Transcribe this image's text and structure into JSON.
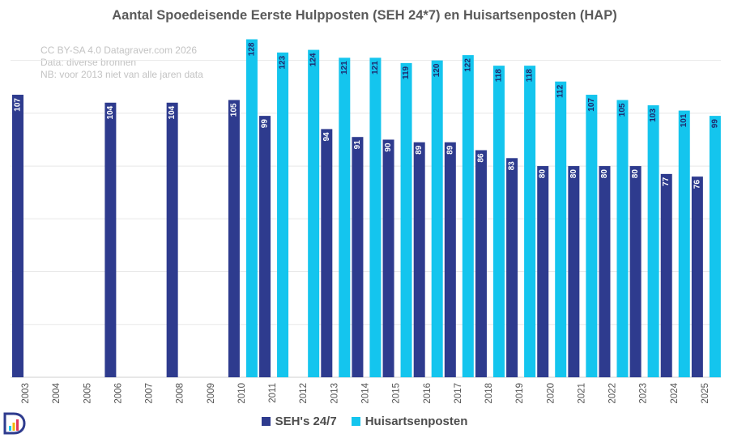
{
  "source_lines": [
    "CC BY-SA 4.0 Datagraver.com 2026",
    "Data: diverse bronnen",
    "NB: voor 2013 niet van alle jaren data"
  ],
  "colors": {
    "seh": "#2e3b8e",
    "hap": "#14c5ee",
    "grid": "#e8e8e8",
    "title": "#5a5a5a"
  },
  "logo_icon": "datagraver-logo-icon",
  "chart_data": {
    "type": "bar",
    "title": "Aantal Spoedeisende Eerste Hulpposten (SEH 24*7) en Huisartsenposten (HAP)",
    "xlabel": "",
    "ylabel": "",
    "ylim": [
      0,
      130
    ],
    "grid": true,
    "legend": "bottom-center",
    "categories": [
      "2003",
      "2004",
      "2005",
      "2006",
      "2007",
      "2008",
      "2009",
      "2010",
      "2011",
      "2012",
      "2013",
      "2014",
      "2015",
      "2016",
      "2017",
      "2018",
      "2019",
      "2020",
      "2021",
      "2022",
      "2023",
      "2024",
      "2025"
    ],
    "series": [
      {
        "name": "SEH's 24/7",
        "values": [
          107,
          null,
          null,
          104,
          null,
          104,
          null,
          105,
          99,
          null,
          94,
          91,
          90,
          89,
          89,
          86,
          83,
          80,
          80,
          80,
          80,
          77,
          76
        ]
      },
      {
        "name": "Huisartsenposten",
        "values": [
          null,
          null,
          null,
          null,
          null,
          null,
          null,
          128,
          123,
          124,
          121,
          121,
          119,
          120,
          122,
          118,
          118,
          112,
          107,
          105,
          103,
          101,
          99
        ]
      }
    ]
  }
}
